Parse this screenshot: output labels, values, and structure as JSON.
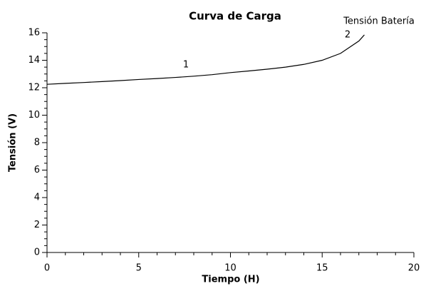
{
  "chart_data": {
    "type": "line",
    "title": "Curva de Carga",
    "x_label": "Tiempo (H)",
    "y_label": "Tensión (V)",
    "annotations": [
      "1",
      "2"
    ],
    "x": [
      0,
      1,
      2,
      3,
      4,
      5,
      6,
      7,
      8,
      9,
      10,
      11,
      12,
      13,
      14,
      15,
      16,
      17,
      17.3
    ],
    "series": [
      {
        "name": "Tensión Batería",
        "color": "#000000",
        "values": [
          12.25,
          12.32,
          12.38,
          12.45,
          12.52,
          12.6,
          12.67,
          12.75,
          12.84,
          12.95,
          13.1,
          13.22,
          13.35,
          13.5,
          13.7,
          14.0,
          14.5,
          15.4,
          15.85
        ]
      }
    ],
    "xlim": [
      0,
      20
    ],
    "ylim": [
      0,
      16
    ],
    "xticks": [
      0,
      5,
      10,
      15,
      20
    ],
    "yticks": [
      0,
      2,
      4,
      6,
      8,
      10,
      12,
      14,
      16
    ],
    "xminorticks": [
      1,
      2,
      3,
      4,
      6,
      7,
      8,
      9,
      11,
      12,
      13,
      14,
      16,
      17,
      18,
      19
    ],
    "yminorticks": [
      0.5,
      1,
      1.5,
      2.5,
      3,
      3.5,
      4.5,
      5,
      5.5,
      6.5,
      7,
      7.5,
      8.5,
      9,
      9.5,
      10.5,
      11,
      11.5,
      12.5,
      13,
      13.5,
      14.5,
      15,
      15.5
    ],
    "grid": false
  }
}
